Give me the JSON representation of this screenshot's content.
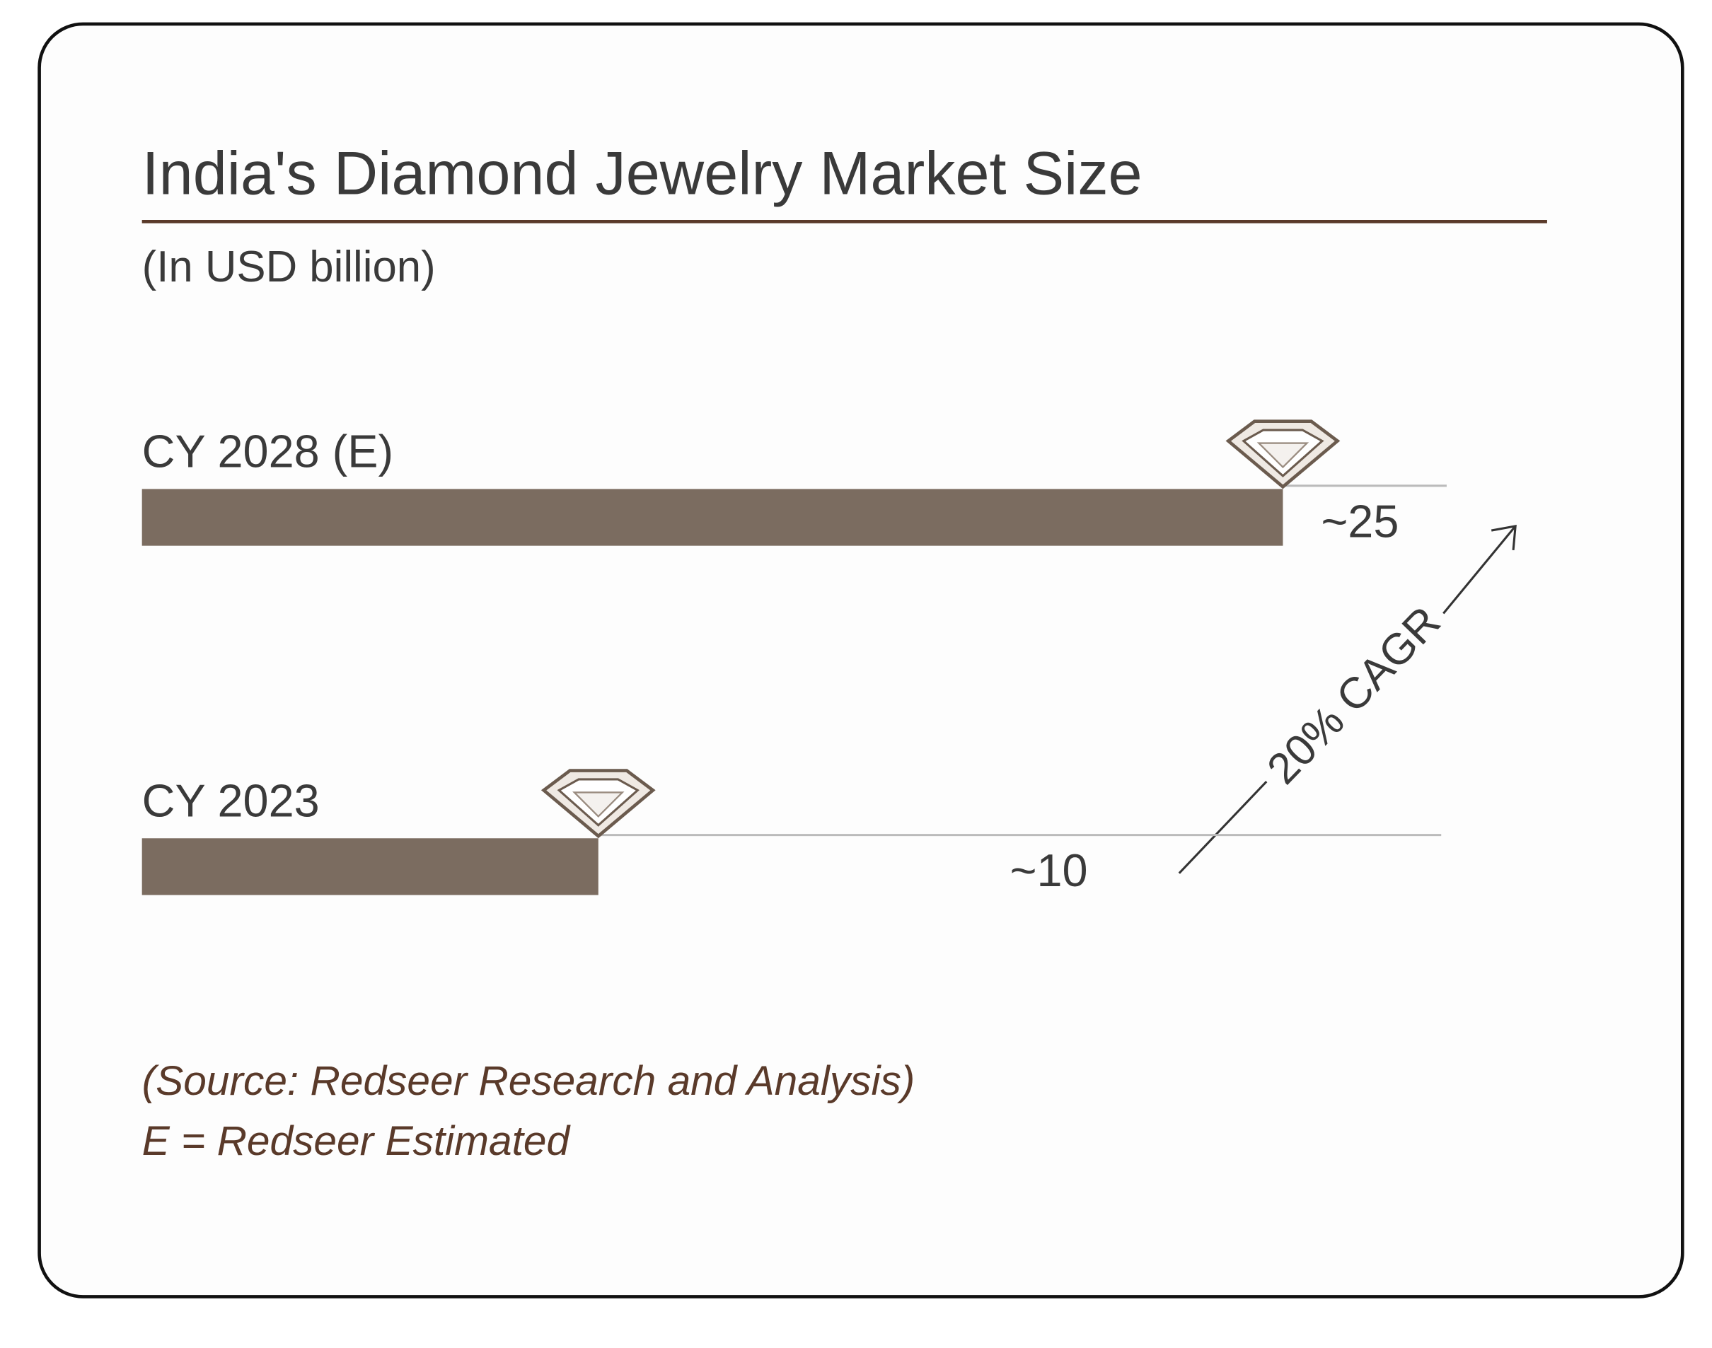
{
  "chart_data": {
    "type": "bar",
    "orientation": "horizontal",
    "title": "India's Diamond Jewelry Market Size",
    "subtitle": "(In USD billion)",
    "categories": [
      "CY 2028 (E)",
      "CY 2023"
    ],
    "values": [
      25,
      10
    ],
    "value_labels": [
      "~25",
      "~10"
    ],
    "color": "#7b6c60",
    "xlim": [
      0,
      25
    ],
    "annotation": "20% CAGR",
    "notes": [
      "(Source: Redseer Research and Analysis)",
      "E = Redseer Estimated"
    ]
  }
}
